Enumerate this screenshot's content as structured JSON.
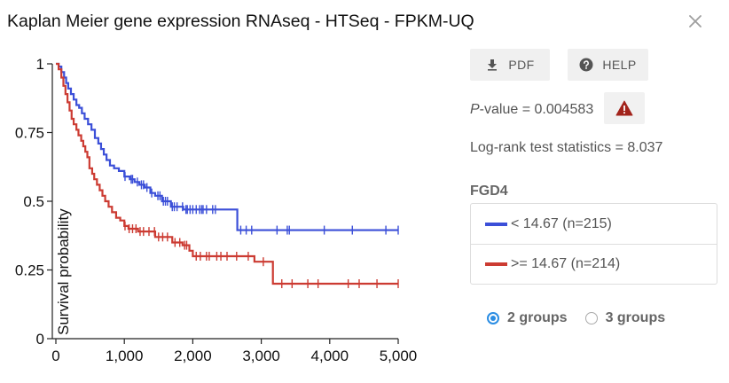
{
  "title": "Kaplan Meier gene expression RNAseq - HTSeq - FPKM-UQ",
  "buttons": {
    "pdf": "PDF",
    "help": "HELP"
  },
  "stats": {
    "p_label": "P",
    "p_rest": "-value = 0.004583",
    "logrank": "Log-rank test statistics = 8.037"
  },
  "gene": "FGD4",
  "legend": [
    {
      "label": "< 14.67 (n=215)",
      "color": "#3b4fd8"
    },
    {
      "label": ">= 14.67 (n=214)",
      "color": "#cc3b32"
    }
  ],
  "groups": {
    "options": [
      "2 groups",
      "3 groups"
    ],
    "selected": "2 groups"
  },
  "icons": {
    "close": "close-icon",
    "pdf": "download-icon",
    "help": "help-circle-icon",
    "warning": "warning-icon"
  },
  "chart_data": {
    "type": "line",
    "title": "",
    "xlabel": "",
    "ylabel": "Survival probability",
    "xlim": [
      0,
      5000
    ],
    "ylim": [
      0,
      1
    ],
    "x_ticks": [
      "0",
      "1,000",
      "2,000",
      "3,000",
      "4,000",
      "5,000"
    ],
    "x_tick_values": [
      0,
      1000,
      2000,
      3000,
      4000,
      5000
    ],
    "y_ticks": [
      "0",
      "0.25",
      "0.5",
      "0.75",
      "1"
    ],
    "y_tick_values": [
      0,
      0.25,
      0.5,
      0.75,
      1
    ],
    "grid": false,
    "series": [
      {
        "name": "< 14.67 (n=215)",
        "color": "#3b4fd8",
        "steps": [
          [
            0,
            1.0
          ],
          [
            40,
            0.99
          ],
          [
            80,
            0.97
          ],
          [
            120,
            0.95
          ],
          [
            150,
            0.93
          ],
          [
            180,
            0.91
          ],
          [
            220,
            0.89
          ],
          [
            260,
            0.87
          ],
          [
            300,
            0.85
          ],
          [
            340,
            0.84
          ],
          [
            380,
            0.82
          ],
          [
            420,
            0.8
          ],
          [
            470,
            0.78
          ],
          [
            520,
            0.76
          ],
          [
            570,
            0.73
          ],
          [
            620,
            0.71
          ],
          [
            660,
            0.69
          ],
          [
            700,
            0.67
          ],
          [
            740,
            0.65
          ],
          [
            790,
            0.63
          ],
          [
            850,
            0.62
          ],
          [
            920,
            0.61
          ],
          [
            1000,
            0.59
          ],
          [
            1080,
            0.58
          ],
          [
            1150,
            0.57
          ],
          [
            1220,
            0.56
          ],
          [
            1300,
            0.55
          ],
          [
            1380,
            0.53
          ],
          [
            1450,
            0.52
          ],
          [
            1550,
            0.5
          ],
          [
            1680,
            0.48
          ],
          [
            1860,
            0.47
          ],
          [
            2650,
            0.395
          ],
          [
            5000,
            0.395
          ]
        ],
        "censored": [
          [
            1010,
            0.59
          ],
          [
            1100,
            0.58
          ],
          [
            1120,
            0.58
          ],
          [
            1190,
            0.57
          ],
          [
            1250,
            0.56
          ],
          [
            1280,
            0.56
          ],
          [
            1330,
            0.55
          ],
          [
            1400,
            0.53
          ],
          [
            1490,
            0.52
          ],
          [
            1520,
            0.52
          ],
          [
            1570,
            0.5
          ],
          [
            1600,
            0.5
          ],
          [
            1630,
            0.5
          ],
          [
            1700,
            0.48
          ],
          [
            1730,
            0.48
          ],
          [
            1770,
            0.48
          ],
          [
            1850,
            0.48
          ],
          [
            1900,
            0.47
          ],
          [
            1920,
            0.47
          ],
          [
            1960,
            0.47
          ],
          [
            2000,
            0.47
          ],
          [
            2050,
            0.47
          ],
          [
            2100,
            0.47
          ],
          [
            2130,
            0.47
          ],
          [
            2150,
            0.47
          ],
          [
            2200,
            0.47
          ],
          [
            2290,
            0.47
          ],
          [
            2330,
            0.47
          ],
          [
            2700,
            0.395
          ],
          [
            2780,
            0.395
          ],
          [
            2860,
            0.395
          ],
          [
            3230,
            0.395
          ],
          [
            3380,
            0.395
          ],
          [
            3410,
            0.395
          ],
          [
            3920,
            0.395
          ],
          [
            4330,
            0.395
          ],
          [
            4820,
            0.395
          ],
          [
            5000,
            0.395
          ]
        ]
      },
      {
        "name": ">= 14.67 (n=214)",
        "color": "#cc3b32",
        "steps": [
          [
            0,
            1.0
          ],
          [
            40,
            0.98
          ],
          [
            80,
            0.95
          ],
          [
            110,
            0.92
          ],
          [
            140,
            0.89
          ],
          [
            170,
            0.86
          ],
          [
            200,
            0.83
          ],
          [
            230,
            0.8
          ],
          [
            260,
            0.78
          ],
          [
            300,
            0.76
          ],
          [
            330,
            0.74
          ],
          [
            370,
            0.72
          ],
          [
            400,
            0.7
          ],
          [
            430,
            0.68
          ],
          [
            460,
            0.66
          ],
          [
            490,
            0.62
          ],
          [
            530,
            0.6
          ],
          [
            560,
            0.58
          ],
          [
            600,
            0.56
          ],
          [
            640,
            0.54
          ],
          [
            680,
            0.52
          ],
          [
            720,
            0.5
          ],
          [
            770,
            0.48
          ],
          [
            820,
            0.46
          ],
          [
            880,
            0.44
          ],
          [
            940,
            0.43
          ],
          [
            1000,
            0.41
          ],
          [
            1060,
            0.4
          ],
          [
            1200,
            0.39
          ],
          [
            1450,
            0.37
          ],
          [
            1700,
            0.35
          ],
          [
            1850,
            0.34
          ],
          [
            1950,
            0.32
          ],
          [
            2000,
            0.3
          ],
          [
            2900,
            0.28
          ],
          [
            3170,
            0.2
          ],
          [
            5000,
            0.2
          ]
        ],
        "censored": [
          [
            1010,
            0.41
          ],
          [
            1070,
            0.4
          ],
          [
            1120,
            0.4
          ],
          [
            1170,
            0.4
          ],
          [
            1230,
            0.39
          ],
          [
            1280,
            0.39
          ],
          [
            1360,
            0.39
          ],
          [
            1440,
            0.39
          ],
          [
            1500,
            0.37
          ],
          [
            1560,
            0.37
          ],
          [
            1630,
            0.37
          ],
          [
            1740,
            0.35
          ],
          [
            1810,
            0.35
          ],
          [
            1880,
            0.34
          ],
          [
            1910,
            0.34
          ],
          [
            2050,
            0.3
          ],
          [
            2110,
            0.3
          ],
          [
            2200,
            0.3
          ],
          [
            2240,
            0.3
          ],
          [
            2350,
            0.3
          ],
          [
            2410,
            0.3
          ],
          [
            2500,
            0.3
          ],
          [
            2640,
            0.3
          ],
          [
            2810,
            0.3
          ],
          [
            3030,
            0.28
          ],
          [
            3300,
            0.2
          ],
          [
            3450,
            0.2
          ],
          [
            3680,
            0.2
          ],
          [
            3830,
            0.2
          ],
          [
            4270,
            0.2
          ],
          [
            4430,
            0.2
          ],
          [
            4690,
            0.2
          ],
          [
            5000,
            0.2
          ]
        ]
      }
    ]
  }
}
